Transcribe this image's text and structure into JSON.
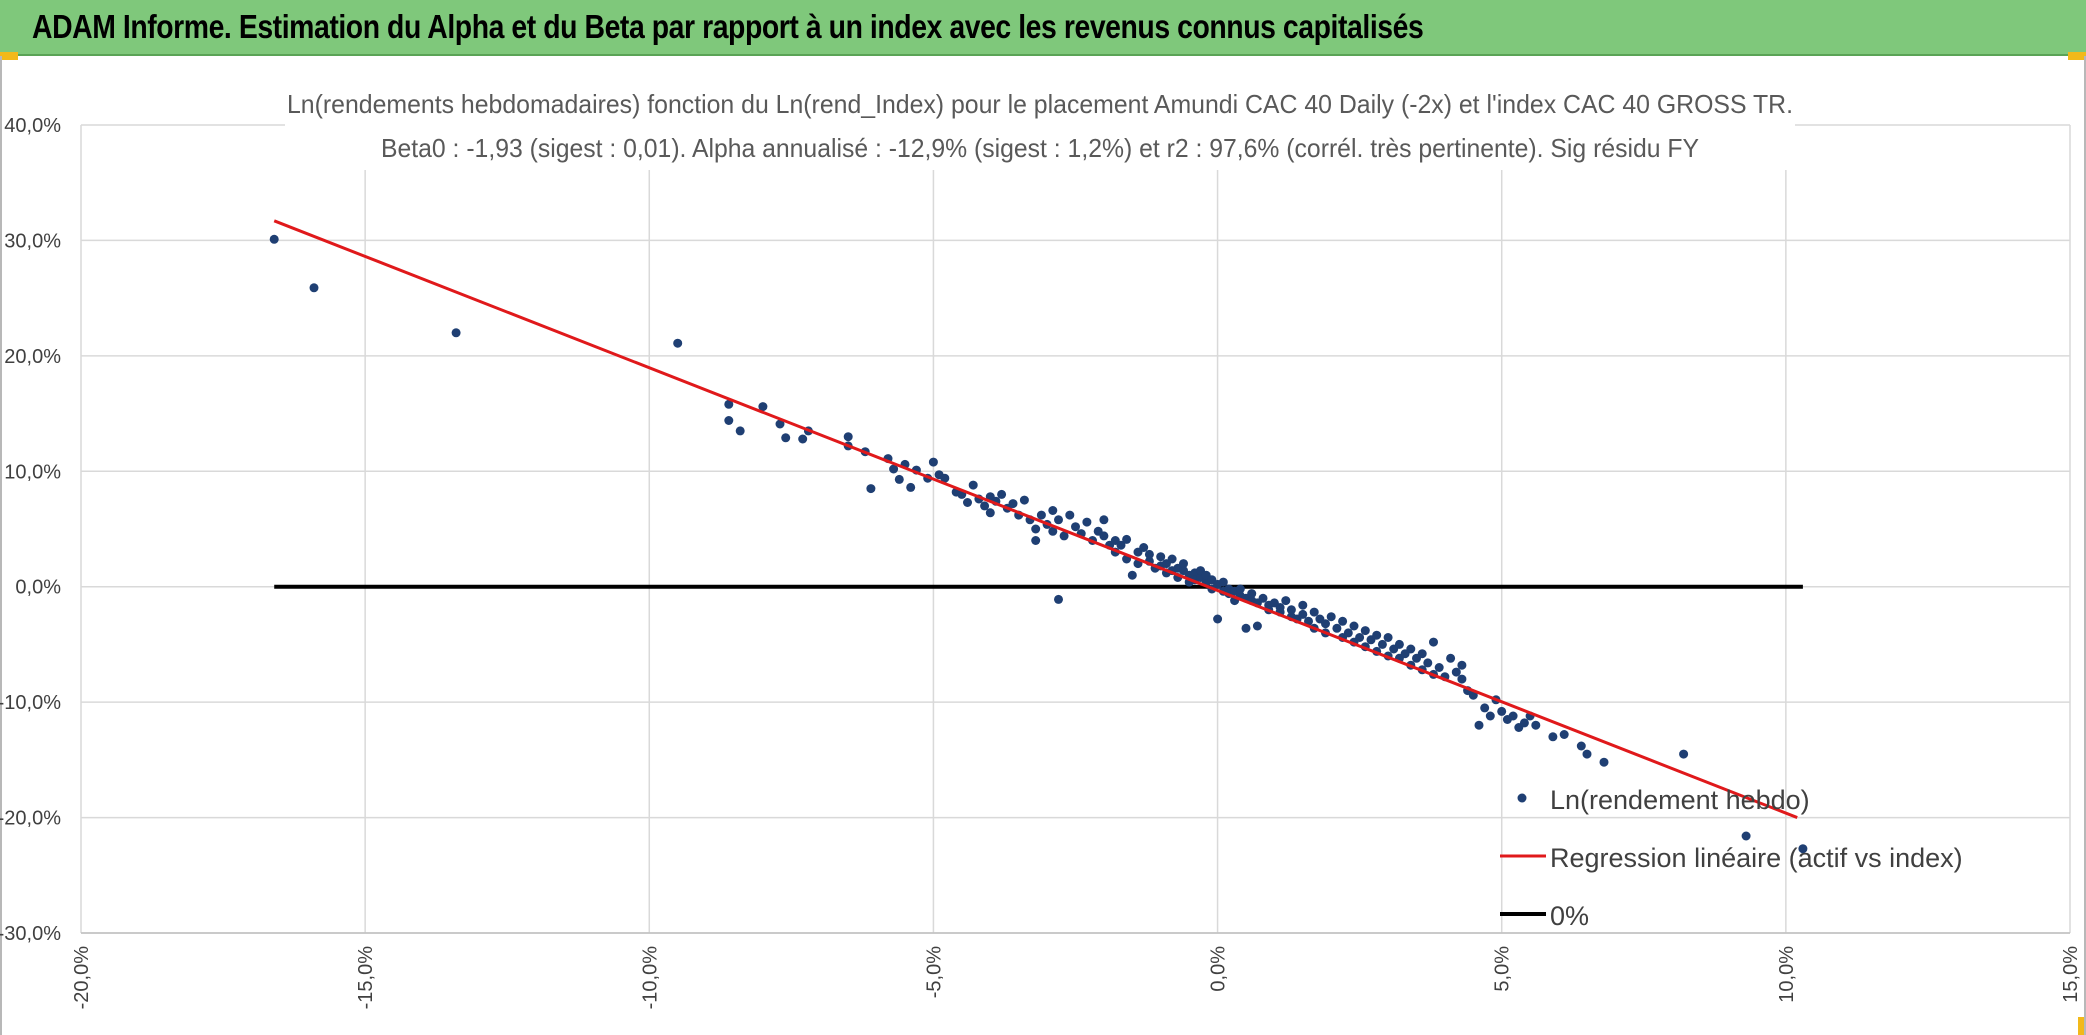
{
  "header": {
    "title": "ADAM Informe. Estimation du Alpha et du Beta par rapport à un index avec les revenus connus capitalisés"
  },
  "colors": {
    "header_bg": "#7fc87b",
    "scatter": "#1f3f73",
    "regression": "#e0191b",
    "zero_line": "#000000",
    "grid": "#d9d9d9"
  },
  "chart_data": {
    "type": "scatter",
    "title": "Ln(rendements hebdomadaires) fonction du Ln(rend_Index) pour le placement Amundi CAC 40 Daily (-2x) et l'index CAC 40 GROSS TR.",
    "subtitle": "Beta0 : -1,93 (sigest : 0,01). Alpha annualisé : -12,9% (sigest : 1,2%) et r2 : 97,6% (corrél. très pertinente). Sig résidu FY",
    "xlabel": "",
    "ylabel": "",
    "xlim": [
      -0.2,
      0.15
    ],
    "ylim": [
      -0.3,
      0.4
    ],
    "x_ticks": [
      "-20,0%",
      "-15,0%",
      "-10,0%",
      "-5,0%",
      "0,0%",
      "5,0%",
      "10,0%",
      "15,0%"
    ],
    "y_ticks": [
      "40,0%",
      "30,0%",
      "20,0%",
      "10,0%",
      "0,0%",
      "-10,0%",
      "-20,0%",
      "-30,0%"
    ],
    "grid": true,
    "legend_position": "bottom-right",
    "series": [
      {
        "name": "Ln(rendement hebdo)",
        "type": "scatter",
        "points": [
          [
            -0.166,
            0.301
          ],
          [
            -0.159,
            0.259
          ],
          [
            -0.134,
            0.22
          ],
          [
            -0.095,
            0.211
          ],
          [
            -0.086,
            0.158
          ],
          [
            -0.086,
            0.144
          ],
          [
            -0.084,
            0.135
          ],
          [
            -0.08,
            0.156
          ],
          [
            -0.077,
            0.141
          ],
          [
            -0.076,
            0.129
          ],
          [
            -0.073,
            0.128
          ],
          [
            -0.072,
            0.135
          ],
          [
            -0.065,
            0.13
          ],
          [
            -0.065,
            0.122
          ],
          [
            -0.062,
            0.117
          ],
          [
            -0.061,
            0.085
          ],
          [
            -0.058,
            0.111
          ],
          [
            -0.057,
            0.102
          ],
          [
            -0.056,
            0.093
          ],
          [
            -0.055,
            0.106
          ],
          [
            -0.054,
            0.086
          ],
          [
            -0.053,
            0.101
          ],
          [
            -0.051,
            0.094
          ],
          [
            -0.05,
            0.108
          ],
          [
            -0.049,
            0.097
          ],
          [
            -0.048,
            0.094
          ],
          [
            -0.046,
            0.082
          ],
          [
            -0.045,
            0.08
          ],
          [
            -0.044,
            0.073
          ],
          [
            -0.043,
            0.088
          ],
          [
            -0.042,
            0.076
          ],
          [
            -0.041,
            0.07
          ],
          [
            -0.04,
            0.078
          ],
          [
            -0.04,
            0.064
          ],
          [
            -0.039,
            0.074
          ],
          [
            -0.038,
            0.08
          ],
          [
            -0.037,
            0.068
          ],
          [
            -0.036,
            0.072
          ],
          [
            -0.035,
            0.062
          ],
          [
            -0.034,
            0.075
          ],
          [
            -0.033,
            0.058
          ],
          [
            -0.032,
            0.05
          ],
          [
            -0.032,
            0.04
          ],
          [
            -0.031,
            0.062
          ],
          [
            -0.03,
            0.054
          ],
          [
            -0.029,
            0.066
          ],
          [
            -0.029,
            0.048
          ],
          [
            -0.028,
            0.058
          ],
          [
            -0.028,
            -0.011
          ],
          [
            -0.027,
            0.044
          ],
          [
            -0.026,
            0.062
          ],
          [
            -0.025,
            0.052
          ],
          [
            -0.024,
            0.046
          ],
          [
            -0.023,
            0.056
          ],
          [
            -0.022,
            0.04
          ],
          [
            -0.021,
            0.048
          ],
          [
            -0.02,
            0.044
          ],
          [
            -0.02,
            0.058
          ],
          [
            -0.019,
            0.036
          ],
          [
            -0.018,
            0.04
          ],
          [
            -0.018,
            0.03
          ],
          [
            -0.017,
            0.036
          ],
          [
            -0.016,
            0.024
          ],
          [
            -0.016,
            0.041
          ],
          [
            -0.015,
            0.01
          ],
          [
            -0.014,
            0.03
          ],
          [
            -0.014,
            0.02
          ],
          [
            -0.013,
            0.034
          ],
          [
            -0.012,
            0.022
          ],
          [
            -0.012,
            0.028
          ],
          [
            -0.011,
            0.016
          ],
          [
            -0.01,
            0.026
          ],
          [
            -0.01,
            0.018
          ],
          [
            -0.009,
            0.02
          ],
          [
            -0.009,
            0.012
          ],
          [
            -0.008,
            0.014
          ],
          [
            -0.008,
            0.024
          ],
          [
            -0.007,
            0.016
          ],
          [
            -0.007,
            0.008
          ],
          [
            -0.006,
            0.014
          ],
          [
            -0.006,
            0.02
          ],
          [
            -0.005,
            0.01
          ],
          [
            -0.005,
            0.004
          ],
          [
            -0.004,
            0.012
          ],
          [
            -0.004,
            0.006
          ],
          [
            -0.003,
            0.008
          ],
          [
            -0.003,
            0.014
          ],
          [
            -0.002,
            0.004
          ],
          [
            -0.002,
            0.01
          ],
          [
            -0.001,
            0.006
          ],
          [
            -0.001,
            -0.002
          ],
          [
            0.0,
            0.002
          ],
          [
            0.0,
            -0.028
          ],
          [
            0.001,
            0.004
          ],
          [
            0.001,
            -0.004
          ],
          [
            0.002,
            -0.002
          ],
          [
            0.002,
            -0.006
          ],
          [
            0.003,
            -0.004
          ],
          [
            0.003,
            -0.012
          ],
          [
            0.004,
            -0.008
          ],
          [
            0.004,
            -0.002
          ],
          [
            0.005,
            -0.01
          ],
          [
            0.005,
            -0.036
          ],
          [
            0.006,
            -0.012
          ],
          [
            0.006,
            -0.006
          ],
          [
            0.007,
            -0.014
          ],
          [
            0.007,
            -0.034
          ],
          [
            0.008,
            -0.01
          ],
          [
            0.009,
            -0.016
          ],
          [
            0.009,
            -0.02
          ],
          [
            0.01,
            -0.014
          ],
          [
            0.011,
            -0.022
          ],
          [
            0.011,
            -0.018
          ],
          [
            0.012,
            -0.012
          ],
          [
            0.013,
            -0.026
          ],
          [
            0.013,
            -0.02
          ],
          [
            0.014,
            -0.028
          ],
          [
            0.015,
            -0.024
          ],
          [
            0.015,
            -0.016
          ],
          [
            0.016,
            -0.03
          ],
          [
            0.017,
            -0.022
          ],
          [
            0.017,
            -0.036
          ],
          [
            0.018,
            -0.028
          ],
          [
            0.019,
            -0.04
          ],
          [
            0.019,
            -0.032
          ],
          [
            0.02,
            -0.026
          ],
          [
            0.021,
            -0.036
          ],
          [
            0.022,
            -0.044
          ],
          [
            0.022,
            -0.03
          ],
          [
            0.023,
            -0.04
          ],
          [
            0.024,
            -0.048
          ],
          [
            0.024,
            -0.034
          ],
          [
            0.025,
            -0.044
          ],
          [
            0.026,
            -0.038
          ],
          [
            0.026,
            -0.052
          ],
          [
            0.027,
            -0.046
          ],
          [
            0.028,
            -0.042
          ],
          [
            0.028,
            -0.056
          ],
          [
            0.029,
            -0.05
          ],
          [
            0.03,
            -0.06
          ],
          [
            0.03,
            -0.044
          ],
          [
            0.031,
            -0.054
          ],
          [
            0.032,
            -0.062
          ],
          [
            0.032,
            -0.05
          ],
          [
            0.033,
            -0.058
          ],
          [
            0.034,
            -0.068
          ],
          [
            0.034,
            -0.054
          ],
          [
            0.035,
            -0.062
          ],
          [
            0.036,
            -0.072
          ],
          [
            0.036,
            -0.058
          ],
          [
            0.037,
            -0.066
          ],
          [
            0.038,
            -0.076
          ],
          [
            0.038,
            -0.048
          ],
          [
            0.039,
            -0.07
          ],
          [
            0.04,
            -0.078
          ],
          [
            0.041,
            -0.062
          ],
          [
            0.042,
            -0.074
          ],
          [
            0.043,
            -0.068
          ],
          [
            0.043,
            -0.08
          ],
          [
            0.044,
            -0.09
          ],
          [
            0.045,
            -0.094
          ],
          [
            0.046,
            -0.12
          ],
          [
            0.047,
            -0.105
          ],
          [
            0.048,
            -0.112
          ],
          [
            0.049,
            -0.098
          ],
          [
            0.05,
            -0.108
          ],
          [
            0.051,
            -0.115
          ],
          [
            0.052,
            -0.112
          ],
          [
            0.053,
            -0.122
          ],
          [
            0.054,
            -0.118
          ],
          [
            0.055,
            -0.112
          ],
          [
            0.056,
            -0.12
          ],
          [
            0.059,
            -0.13
          ],
          [
            0.061,
            -0.128
          ],
          [
            0.064,
            -0.138
          ],
          [
            0.065,
            -0.145
          ],
          [
            0.068,
            -0.152
          ],
          [
            0.082,
            -0.145
          ],
          [
            0.093,
            -0.216
          ],
          [
            0.103,
            -0.227
          ]
        ]
      },
      {
        "name": "Regression linéaire (actif vs index)",
        "type": "line",
        "points": [
          [
            -0.166,
            0.317
          ],
          [
            0.102,
            -0.2
          ]
        ]
      },
      {
        "name": "0%",
        "type": "line",
        "points": [
          [
            -0.166,
            0.0
          ],
          [
            0.103,
            0.0
          ]
        ]
      }
    ]
  }
}
